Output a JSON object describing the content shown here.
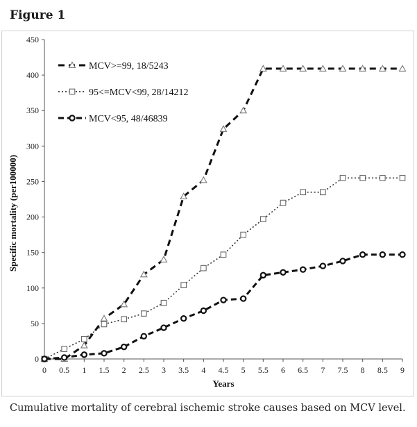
{
  "figure_label": "Figure 1",
  "caption": "Cumulative mortality of cerebral ischemic stroke causes based on MCV level.",
  "chart_data": {
    "type": "line",
    "title": "",
    "xlabel": "Years",
    "ylabel": "Specific mortality (per100000)",
    "xlim": [
      0,
      9
    ],
    "ylim": [
      0,
      450
    ],
    "x_ticks": [
      "0",
      "0.5",
      "1",
      "1.5",
      "2",
      "2.5",
      "3",
      "3.5",
      "4",
      "4.5",
      "5",
      "5.5",
      "6",
      "6.5",
      "7",
      "7.5",
      "8",
      "8.5",
      "9"
    ],
    "y_ticks": [
      "0",
      "50",
      "100",
      "150",
      "200",
      "250",
      "300",
      "350",
      "400",
      "450"
    ],
    "x": [
      0,
      0.5,
      1,
      1.5,
      2,
      2.5,
      3,
      3.5,
      4,
      4.5,
      5,
      5.5,
      6,
      6.5,
      7,
      7.5,
      8,
      8.5,
      9
    ],
    "grid": false,
    "legend_position": "top-left",
    "series": [
      {
        "name": "MCV>=99, 18/5243",
        "marker": "triangle",
        "dash": "long-dash",
        "values": [
          0,
          0,
          19,
          57,
          77,
          119,
          140,
          229,
          252,
          324,
          350,
          409,
          409,
          409,
          409,
          409,
          409,
          409,
          409
        ]
      },
      {
        "name": "95<=MCV<99, 28/14212",
        "marker": "square",
        "dash": "dotted",
        "values": [
          0,
          14,
          28,
          49,
          56,
          64,
          79,
          104,
          128,
          147,
          175,
          197,
          220,
          235,
          235,
          255,
          255,
          255,
          255
        ]
      },
      {
        "name": "MCV<95, 48/46839",
        "marker": "circle",
        "dash": "dash",
        "values": [
          0,
          2,
          6,
          8,
          17,
          32,
          44,
          57,
          68,
          83,
          85,
          118,
          122,
          126,
          131,
          138,
          147,
          147,
          147
        ]
      }
    ]
  }
}
